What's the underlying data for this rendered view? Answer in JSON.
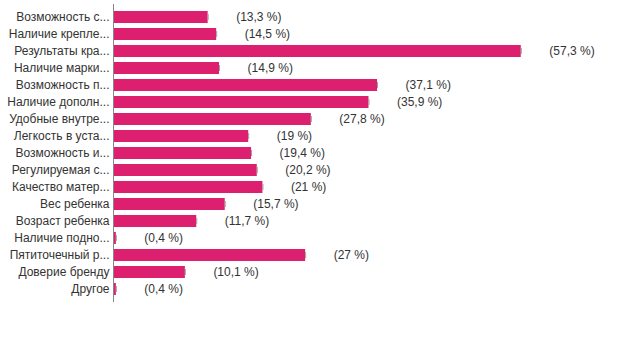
{
  "chart_data": {
    "type": "bar",
    "orientation": "horizontal",
    "categories": [
      "Возможность с...",
      "Наличие крепле...",
      "Результаты кра...",
      "Наличие марки...",
      "Возможность п...",
      "Наличие дополн...",
      "Удобные внутре...",
      "Легкость в уста...",
      "Возможность и...",
      "Регулируемая с...",
      "Качество матер...",
      "Вес ребенка",
      "Возраст ребенка",
      "Наличие подно...",
      "Пятиточечный р...",
      "Доверие бренду",
      "Другое"
    ],
    "values": [
      13.3,
      14.5,
      57.3,
      14.9,
      37.1,
      35.9,
      27.8,
      19,
      19.4,
      20.2,
      21,
      15.7,
      11.7,
      0.4,
      27,
      10.1,
      0.4
    ],
    "value_labels": [
      "(13,3 %)",
      "(14,5 %)",
      "(57,3 %)",
      "(14,9 %)",
      "(37,1 %)",
      "(35,9 %)",
      "(27,8 %)",
      "(19 %)",
      "(19,4 %)",
      "(20,2 %)",
      "(21 %)",
      "(15,7 %)",
      "(11,7 %)",
      "(0,4 %)",
      "(27 %)",
      "(10,1 %)",
      "(0,4 %)"
    ],
    "color": "#dc1f6e",
    "xlim": [
      0,
      60
    ],
    "data_labels": true,
    "tick_labels": "y",
    "grid": false
  }
}
